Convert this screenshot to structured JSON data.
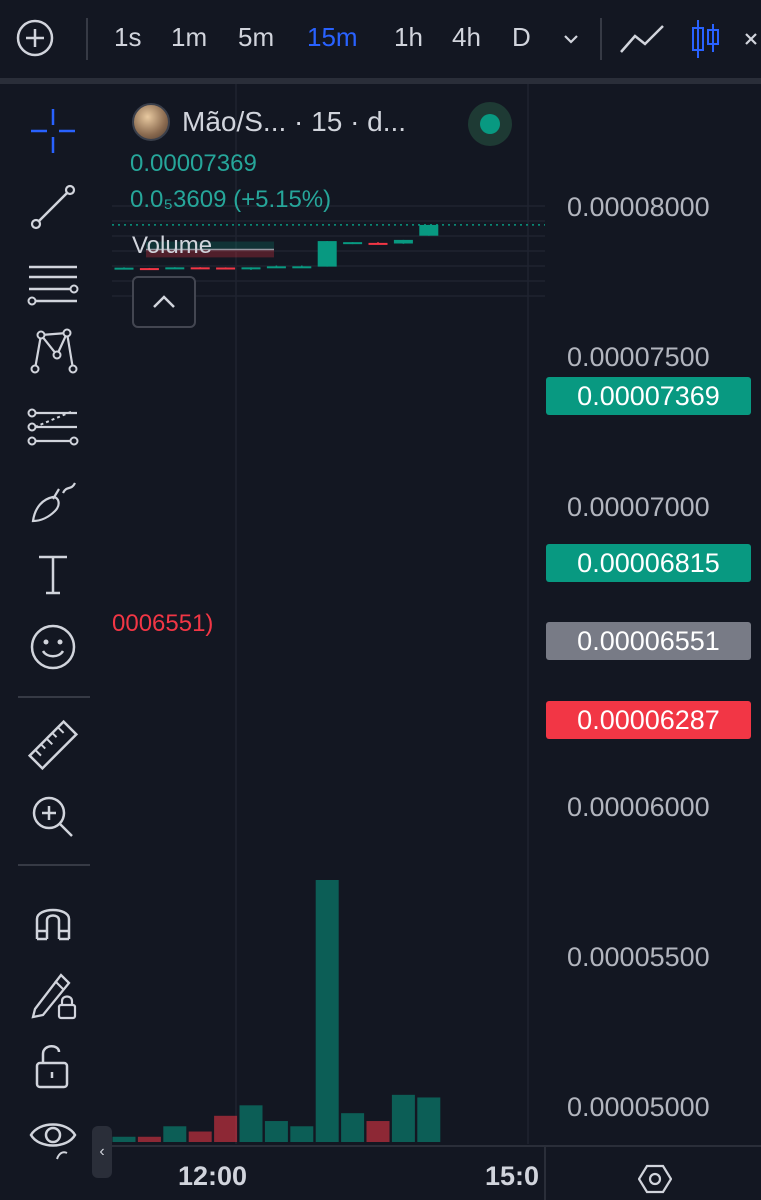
{
  "toolbar": {
    "add_icon": "circle-plus-icon",
    "timeframes": [
      {
        "label": "1s",
        "active": false
      },
      {
        "label": "1m",
        "active": false
      },
      {
        "label": "5m",
        "active": false
      },
      {
        "label": "15m",
        "active": true
      },
      {
        "label": "1h",
        "active": false
      },
      {
        "label": "4h",
        "active": false
      },
      {
        "label": "D",
        "active": false
      }
    ],
    "accent_color": "#2962ff"
  },
  "sidebar": {
    "tools": [
      "crosshair-icon",
      "trend-line-icon",
      "horizontal-lines-icon",
      "pattern-icon",
      "fib-icon",
      "brush-icon",
      "text-icon",
      "emoji-icon",
      "ruler-icon",
      "zoom-in-icon",
      "magnet-icon",
      "lock-drawing-icon",
      "unlock-icon",
      "eye-icon"
    ]
  },
  "legend": {
    "symbol": "Mão/S... · 15 · d...",
    "price": "0.00007369",
    "change": "0.0₅3609 (+5.15%)",
    "volume_label": "Volume"
  },
  "order_label": "0006551)",
  "price_axis": {
    "ticks": [
      "0.00008000",
      "0.00007500",
      "0.00007000",
      "0.00006000",
      "0.00005500",
      "0.00005000"
    ],
    "tags": [
      {
        "label": "0.00007369",
        "color": "#089981"
      },
      {
        "label": "0.00006815",
        "color": "#089981"
      },
      {
        "label": "0.00006551",
        "color": "#787b86"
      },
      {
        "label": "0.00006287",
        "color": "#f23645"
      }
    ]
  },
  "time_axis": {
    "labels": [
      "12:00",
      "15:0"
    ]
  },
  "colors": {
    "up": "#089981",
    "down": "#f23645",
    "background": "#131722",
    "grid": "#1f2330"
  },
  "chart_data": {
    "type": "candlestick",
    "candles": [
      {
        "o": 5.91e-05,
        "h": 5.955e-05,
        "l": 5.9e-05,
        "c": 5.945e-05
      },
      {
        "o": 5.93e-05,
        "h": 5.935e-05,
        "l": 5.915e-05,
        "c": 5.92e-05
      },
      {
        "o": 5.925e-05,
        "h": 5.96e-05,
        "l": 5.92e-05,
        "c": 5.955e-05
      },
      {
        "o": 5.955e-05,
        "h": 5.96e-05,
        "l": 5.945e-05,
        "c": 5.95e-05
      },
      {
        "o": 5.95e-05,
        "h": 5.955e-05,
        "l": 5.905e-05,
        "c": 5.91e-05
      },
      {
        "o": 5.91e-05,
        "h": 5.955e-05,
        "l": 5.87e-05,
        "c": 5.955e-05
      },
      {
        "o": 5.95e-05,
        "h": 6.015e-05,
        "l": 5.945e-05,
        "c": 5.99e-05
      },
      {
        "o": 5.98e-05,
        "h": 6.015e-05,
        "l": 5.975e-05,
        "c": 5.99e-05
      },
      {
        "o": 5.98e-05,
        "h": 6.83e-05,
        "l": 5.98e-05,
        "c": 6.83e-05
      },
      {
        "o": 6.73e-05,
        "h": 6.795e-05,
        "l": 6.73e-05,
        "c": 6.795e-05
      },
      {
        "o": 6.77e-05,
        "h": 6.795e-05,
        "l": 6.74e-05,
        "c": 6.76e-05
      },
      {
        "o": 6.75e-05,
        "h": 6.87e-05,
        "l": 6.74e-05,
        "c": 6.87e-05
      },
      {
        "o": 7.01e-05,
        "h": 7.369e-05,
        "l": 7.01e-05,
        "c": 7.369e-05
      }
    ],
    "volume_relative": [
      0.02,
      0.02,
      0.06,
      0.04,
      0.1,
      0.14,
      0.08,
      0.06,
      1.0,
      0.11,
      0.08,
      0.18,
      0.17
    ],
    "last_price": 7.369e-05,
    "position": {
      "entry": 6.551e-05,
      "target": 6.815e-05,
      "stop": 6.287e-05
    }
  }
}
